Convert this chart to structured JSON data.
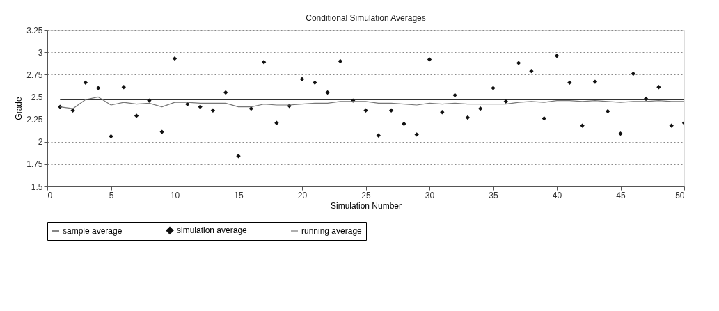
{
  "chart_data": {
    "type": "scatter",
    "title": "Conditional Simulation Averages",
    "xlabel": "Simulation Number",
    "ylabel": "Grade",
    "x": [
      1,
      2,
      3,
      4,
      5,
      6,
      7,
      8,
      9,
      10,
      11,
      12,
      13,
      14,
      15,
      16,
      17,
      18,
      19,
      20,
      21,
      22,
      23,
      24,
      25,
      26,
      27,
      28,
      29,
      30,
      31,
      32,
      33,
      34,
      35,
      36,
      37,
      38,
      39,
      40,
      41,
      42,
      43,
      44,
      45,
      46,
      47,
      48,
      49,
      50
    ],
    "series": [
      {
        "name": "sample average",
        "type": "line",
        "color": "#333333",
        "marker": "none",
        "line_style": "solid",
        "values": [
          2.47,
          2.47,
          2.47,
          2.47,
          2.47,
          2.47,
          2.47,
          2.47,
          2.47,
          2.47,
          2.47,
          2.47,
          2.47,
          2.47,
          2.47,
          2.47,
          2.47,
          2.47,
          2.47,
          2.47,
          2.47,
          2.47,
          2.47,
          2.47,
          2.47,
          2.47,
          2.47,
          2.47,
          2.47,
          2.47,
          2.47,
          2.47,
          2.47,
          2.47,
          2.47,
          2.47,
          2.47,
          2.47,
          2.47,
          2.47,
          2.47,
          2.47,
          2.47,
          2.47,
          2.47,
          2.47,
          2.47,
          2.47,
          2.47,
          2.47
        ]
      },
      {
        "name": "simulation average",
        "color": "#111111",
        "marker": "diamond",
        "values": [
          2.39,
          2.35,
          2.66,
          2.6,
          2.06,
          2.61,
          2.29,
          2.46,
          2.11,
          2.93,
          2.42,
          2.39,
          2.35,
          2.55,
          1.84,
          2.37,
          2.89,
          2.21,
          2.4,
          2.7,
          2.66,
          2.55,
          2.9,
          2.46,
          2.35,
          2.07,
          2.35,
          2.2,
          2.08,
          2.92,
          2.33,
          2.52,
          2.27,
          2.37,
          2.6,
          2.45,
          2.88,
          2.79,
          2.26,
          2.96,
          2.66,
          2.18,
          2.67,
          2.34,
          2.09,
          2.76,
          2.48,
          2.61,
          2.18,
          2.21
        ]
      },
      {
        "name": "running average",
        "type": "line",
        "color": "#777777",
        "marker": "none",
        "line_style": "solid",
        "values": [
          2.39,
          2.37,
          2.47,
          2.5,
          2.41,
          2.44,
          2.42,
          2.43,
          2.39,
          2.44,
          2.44,
          2.43,
          2.43,
          2.43,
          2.39,
          2.39,
          2.42,
          2.41,
          2.41,
          2.42,
          2.43,
          2.43,
          2.45,
          2.45,
          2.45,
          2.43,
          2.43,
          2.42,
          2.41,
          2.43,
          2.42,
          2.43,
          2.42,
          2.42,
          2.42,
          2.42,
          2.44,
          2.45,
          2.44,
          2.46,
          2.46,
          2.45,
          2.46,
          2.45,
          2.44,
          2.45,
          2.45,
          2.46,
          2.45,
          2.45
        ]
      }
    ],
    "xlim": [
      0,
      50
    ],
    "xticks": [
      0,
      5,
      10,
      15,
      20,
      25,
      30,
      35,
      40,
      45,
      50
    ],
    "ylim": [
      1.5,
      3.25
    ],
    "yticks": [
      1.5,
      1.75,
      2,
      2.25,
      2.5,
      2.75,
      3,
      3.25
    ],
    "grid": "y",
    "legend": "bottom"
  }
}
